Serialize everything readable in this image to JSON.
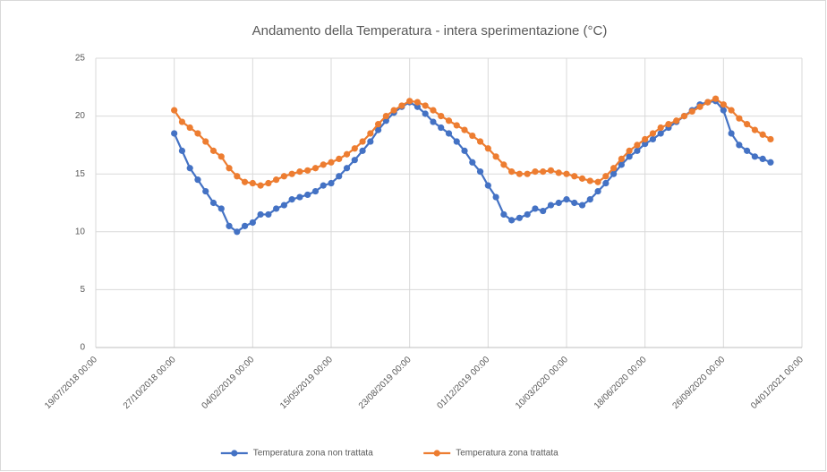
{
  "chart_data": {
    "type": "line",
    "title": "Andamento della Temperatura - intera sperimentazione (°C)",
    "x": [
      "27/10/2018",
      "06/11/2018",
      "16/11/2018",
      "26/11/2018",
      "06/12/2018",
      "16/12/2018",
      "26/12/2018",
      "05/01/2019",
      "15/01/2019",
      "25/01/2019",
      "04/02/2019",
      "14/02/2019",
      "24/02/2019",
      "06/03/2019",
      "16/03/2019",
      "26/03/2019",
      "05/04/2019",
      "15/04/2019",
      "25/04/2019",
      "05/05/2019",
      "15/05/2019",
      "25/05/2019",
      "04/06/2019",
      "14/06/2019",
      "24/06/2019",
      "04/07/2019",
      "14/07/2019",
      "24/07/2019",
      "03/08/2019",
      "13/08/2019",
      "23/08/2019",
      "02/09/2019",
      "12/09/2019",
      "22/09/2019",
      "02/10/2019",
      "12/10/2019",
      "22/10/2019",
      "01/11/2019",
      "11/11/2019",
      "21/11/2019",
      "01/12/2019",
      "11/12/2019",
      "21/12/2019",
      "31/12/2019",
      "10/01/2020",
      "20/01/2020",
      "30/01/2020",
      "09/02/2020",
      "19/02/2020",
      "29/02/2020",
      "10/03/2020",
      "20/03/2020",
      "30/03/2020",
      "09/04/2020",
      "19/04/2020",
      "29/04/2020",
      "09/05/2020",
      "19/05/2020",
      "29/05/2020",
      "08/06/2020",
      "18/06/2020",
      "28/06/2020",
      "08/07/2020",
      "18/07/2020",
      "28/07/2020",
      "07/08/2020",
      "17/08/2020",
      "27/08/2020",
      "06/09/2020",
      "16/09/2020",
      "26/09/2020",
      "06/10/2020",
      "16/10/2020",
      "26/10/2020",
      "05/11/2020",
      "15/11/2020",
      "25/11/2020"
    ],
    "series": [
      {
        "name": "Temperatura zona non trattata",
        "color": "#4472c4",
        "values": [
          18.5,
          17,
          15.5,
          14.5,
          13.5,
          12.5,
          12,
          10.5,
          10,
          10.5,
          10.8,
          11.5,
          11.5,
          12,
          12.3,
          12.8,
          13,
          13.2,
          13.5,
          14,
          14.2,
          14.8,
          15.5,
          16.2,
          17,
          17.8,
          18.8,
          19.6,
          20.3,
          20.8,
          21.2,
          20.8,
          20.2,
          19.5,
          19,
          18.5,
          17.8,
          17,
          16,
          15.2,
          14,
          13,
          11.5,
          11,
          11.2,
          11.5,
          12,
          11.8,
          12.3,
          12.5,
          12.8,
          12.5,
          12.3,
          12.8,
          13.5,
          14.2,
          15,
          15.8,
          16.5,
          17,
          17.6,
          18,
          18.5,
          19,
          19.5,
          20,
          20.5,
          21,
          21.2,
          21.3,
          20.5,
          18.5,
          17.5,
          17,
          16.5,
          16.3,
          16
        ]
      },
      {
        "name": "Temperatura zona trattata",
        "color": "#ed7d31",
        "values": [
          20.5,
          19.5,
          19,
          18.5,
          17.8,
          17,
          16.5,
          15.5,
          14.8,
          14.3,
          14.2,
          14,
          14.2,
          14.5,
          14.8,
          15,
          15.2,
          15.3,
          15.5,
          15.8,
          16,
          16.3,
          16.7,
          17.2,
          17.8,
          18.5,
          19.3,
          20,
          20.5,
          20.9,
          21.3,
          21.2,
          20.9,
          20.5,
          20,
          19.6,
          19.2,
          18.8,
          18.3,
          17.8,
          17.2,
          16.5,
          15.8,
          15.2,
          15,
          15,
          15.2,
          15.2,
          15.3,
          15.1,
          15,
          14.8,
          14.6,
          14.4,
          14.3,
          14.8,
          15.5,
          16.3,
          17,
          17.5,
          18,
          18.5,
          19,
          19.3,
          19.6,
          20,
          20.4,
          20.8,
          21.2,
          21.5,
          21,
          20.5,
          19.8,
          19.3,
          18.8,
          18.4,
          18
        ]
      }
    ],
    "xlim": [
      "19/07/2018 00:00",
      "04/01/2021 00:00"
    ],
    "xticks": [
      "19/07/2018 00:00",
      "27/10/2018 00:00",
      "04/02/2019 00:00",
      "15/05/2019 00:00",
      "23/08/2019 00:00",
      "01/12/2019 00:00",
      "10/03/2020 00:00",
      "18/06/2020 00:00",
      "26/09/2020 00:00",
      "04/01/2021 00:00"
    ],
    "ylim": [
      0,
      25
    ],
    "yticks": [
      0,
      5,
      10,
      15,
      20,
      25
    ],
    "grid": true,
    "legend": "bottom"
  }
}
